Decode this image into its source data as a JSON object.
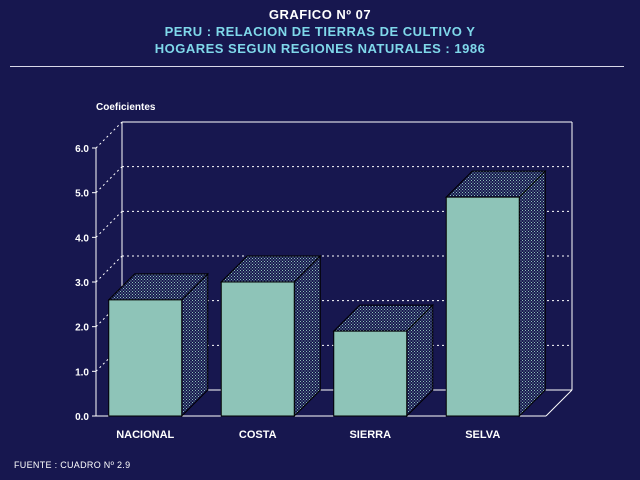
{
  "header": {
    "title_line1": "GRAFICO Nº 07",
    "title_line2": "PERU : RELACION DE TIERRAS DE CULTIVO Y",
    "title_line3": "HOGARES SEGUN REGIONES NATURALES : 1986"
  },
  "footer": {
    "source": "FUENTE : CUADRO Nº 2.9"
  },
  "chart_data": {
    "type": "bar",
    "title": "PERU : RELACION DE TIERRAS DE CULTIVO Y HOGARES SEGUN REGIONES NATURALES : 1986",
    "ylabel": "Coeficientes",
    "xlabel": "",
    "categories": [
      "NACIONAL",
      "COSTA",
      "SIERRA",
      "SELVA"
    ],
    "values": [
      2.6,
      3.0,
      1.9,
      4.9
    ],
    "ylim": [
      0,
      6
    ],
    "yticks": [
      "0.0",
      "1.0",
      "2.0",
      "3.0",
      "4.0",
      "5.0",
      "6.0"
    ],
    "grid": true,
    "style": "3d",
    "colors": {
      "bar_front": "#8ec4b8",
      "background": "#17174f",
      "axis": "#ffffff",
      "grid": "#ffffff"
    }
  }
}
